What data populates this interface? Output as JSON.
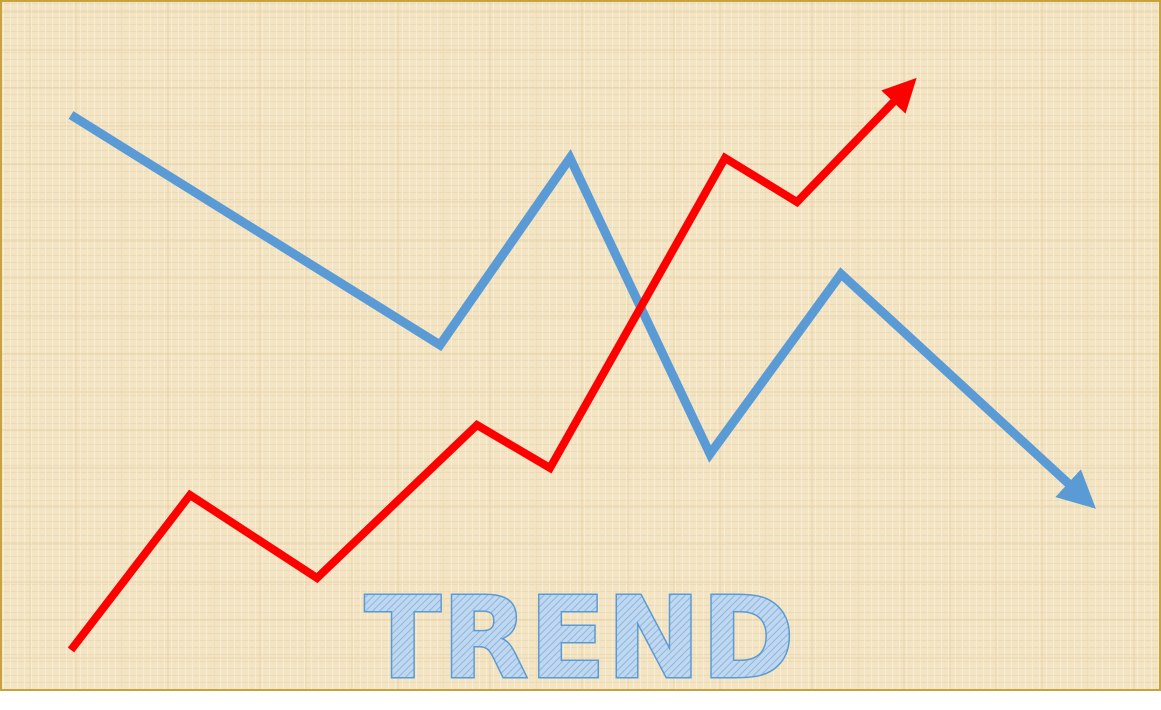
{
  "title": "TREND",
  "colors": {
    "background": "#f4e6c8",
    "border": "#c8a23c",
    "rising_line": "#ff0000",
    "falling_line": "#5b9bd5",
    "title_fill": "#9dc3e6",
    "title_stroke": "#5b9bd5"
  },
  "lines": [
    {
      "name": "rising-trend",
      "direction": "up"
    },
    {
      "name": "falling-trend",
      "direction": "down"
    }
  ]
}
